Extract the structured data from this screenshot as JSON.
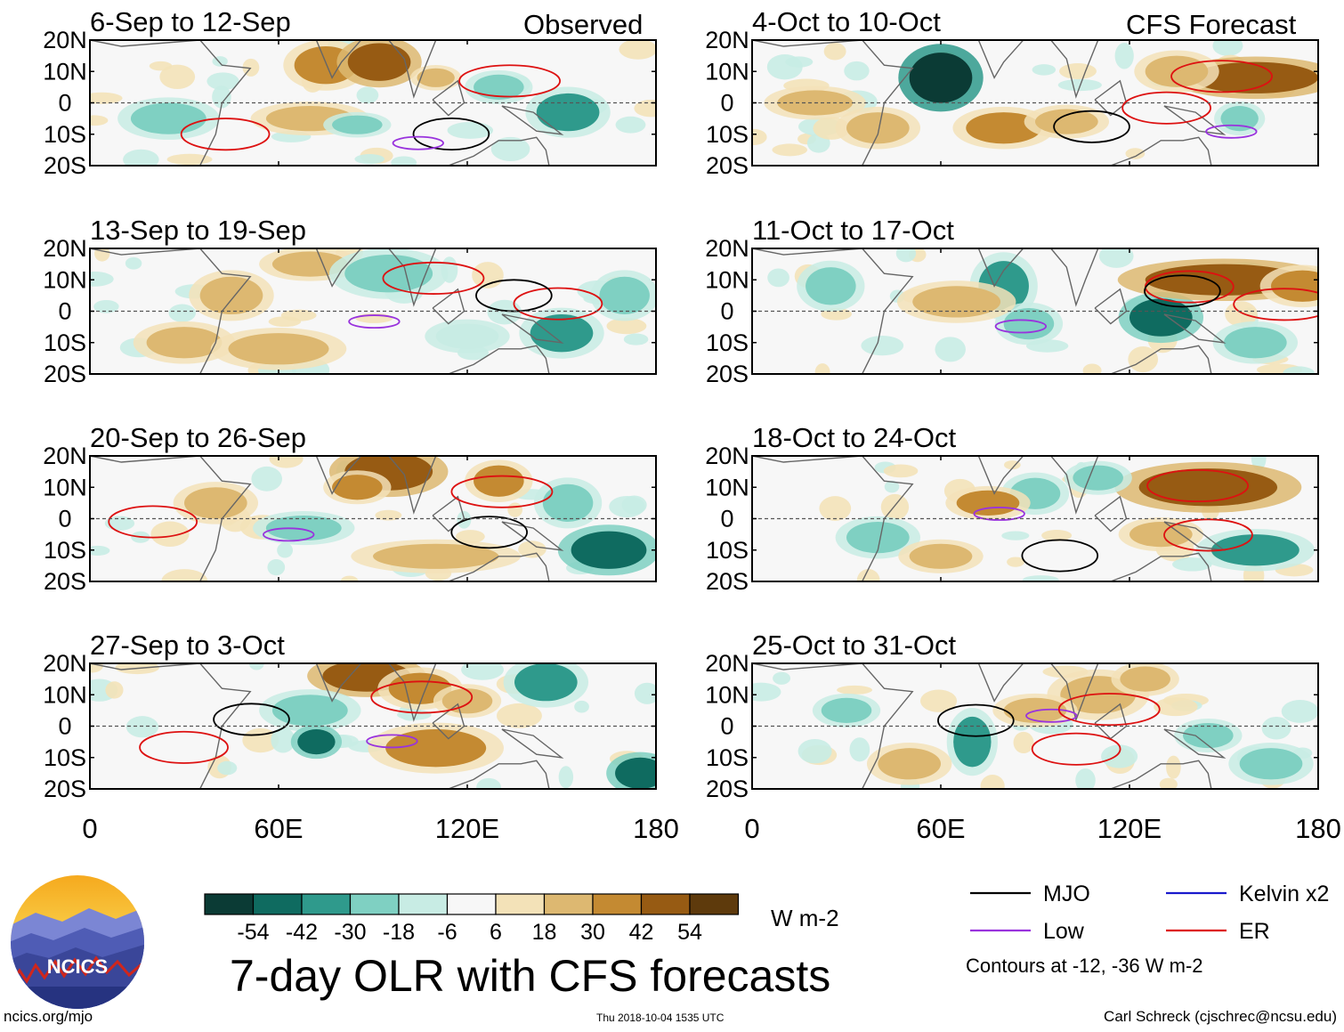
{
  "figure": {
    "title": "7-day OLR with CFS forecasts",
    "units": "W m-2",
    "observed_label": "Observed",
    "forecast_label": "CFS Forecast",
    "contour_note": "Contours at -12, -36 W m-2",
    "site": "ncics.org/mjo",
    "timestamp": "Thu 2018-10-04 1535 UTC",
    "credit": "Carl Schreck (cjschrec@ncsu.edu)",
    "logo_text": "NCICS"
  },
  "chart_data": {
    "type": "heatmap",
    "x_ticks": [
      "0",
      "60E",
      "120E",
      "180"
    ],
    "y_ticks": [
      "20N",
      "10N",
      "0",
      "10S",
      "20S"
    ],
    "xlim": [
      0,
      180
    ],
    "ylim": [
      -20,
      20
    ],
    "observed_panels": [
      {
        "title": "6-Sep to 12-Sep"
      },
      {
        "title": "13-Sep to 19-Sep"
      },
      {
        "title": "20-Sep to 26-Sep"
      },
      {
        "title": "27-Sep to 3-Oct"
      }
    ],
    "forecast_panels": [
      {
        "title": "4-Oct to 10-Oct"
      },
      {
        "title": "11-Oct to 17-Oct"
      },
      {
        "title": "18-Oct to 24-Oct"
      },
      {
        "title": "25-Oct to 31-Oct"
      }
    ],
    "colorbar": {
      "labels": [
        "-54",
        "-42",
        "-30",
        "-18",
        "-6",
        "6",
        "18",
        "30",
        "42",
        "54"
      ],
      "colors": [
        "#0b3b35",
        "#0f6b60",
        "#2f9a8c",
        "#7fd0c2",
        "#c8ece4",
        "#f7f7f7",
        "#f3e2b8",
        "#ddb871",
        "#c48a32",
        "#975b13",
        "#5e3a0c"
      ]
    },
    "legend": [
      {
        "label": "MJO",
        "color": "#000000"
      },
      {
        "label": "Kelvin x2",
        "color": "#1a1acc"
      },
      {
        "label": "Low",
        "color": "#9933dd"
      },
      {
        "label": "ER",
        "color": "#dd1111"
      }
    ]
  }
}
